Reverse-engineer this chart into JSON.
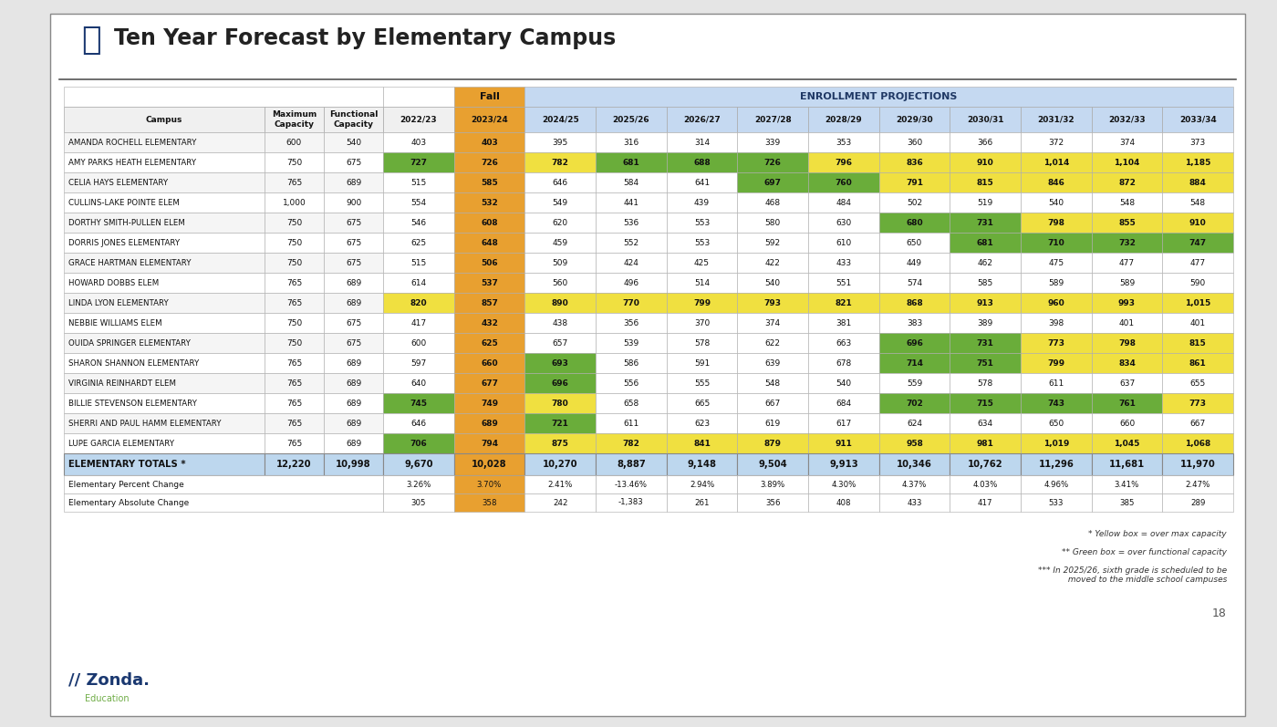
{
  "title": "Ten Year Forecast by Elementary Campus",
  "bg_color": "#e5e5e5",
  "campuses": [
    "AMANDA ROCHELL ELEMENTARY",
    "AMY PARKS HEATH ELEMENTARY",
    "CELIA HAYS ELEMENTARY",
    "CULLINS-LAKE POINTE ELEM",
    "DORTHY SMITH-PULLEN ELEM",
    "DORRIS JONES ELEMENTARY",
    "GRACE HARTMAN ELEMENTARY",
    "HOWARD DOBBS ELEM",
    "LINDA LYON ELEMENTARY",
    "NEBBIE WILLIAMS ELEM",
    "OUIDA SPRINGER ELEMENTARY",
    "SHARON SHANNON ELEMENTARY",
    "VIRGINIA REINHARDT ELEM",
    "BILLIE STEVENSON ELEMENTARY",
    "SHERRI AND PAUL HAMM ELEMENTARY",
    "LUPE GARCIA ELEMENTARY"
  ],
  "max_capacity": [
    600,
    750,
    765,
    1000,
    750,
    750,
    750,
    765,
    765,
    750,
    750,
    765,
    765,
    765,
    765,
    765
  ],
  "func_capacity": [
    540,
    675,
    689,
    900,
    675,
    675,
    675,
    689,
    689,
    675,
    675,
    689,
    689,
    689,
    689,
    689
  ],
  "data": [
    [
      403,
      403,
      395,
      316,
      314,
      339,
      353,
      360,
      366,
      372,
      374,
      373
    ],
    [
      727,
      726,
      782,
      681,
      688,
      726,
      796,
      836,
      910,
      1014,
      1104,
      1185
    ],
    [
      515,
      585,
      646,
      584,
      641,
      697,
      760,
      791,
      815,
      846,
      872,
      884
    ],
    [
      554,
      532,
      549,
      441,
      439,
      468,
      484,
      502,
      519,
      540,
      548,
      548
    ],
    [
      546,
      608,
      620,
      536,
      553,
      580,
      630,
      680,
      731,
      798,
      855,
      910
    ],
    [
      625,
      648,
      459,
      552,
      553,
      592,
      610,
      650,
      681,
      710,
      732,
      747
    ],
    [
      515,
      506,
      509,
      424,
      425,
      422,
      433,
      449,
      462,
      475,
      477,
      477
    ],
    [
      614,
      537,
      560,
      496,
      514,
      540,
      551,
      574,
      585,
      589,
      589,
      590
    ],
    [
      820,
      857,
      890,
      770,
      799,
      793,
      821,
      868,
      913,
      960,
      993,
      1015
    ],
    [
      417,
      432,
      438,
      356,
      370,
      374,
      381,
      383,
      389,
      398,
      401,
      401
    ],
    [
      600,
      625,
      657,
      539,
      578,
      622,
      663,
      696,
      731,
      773,
      798,
      815
    ],
    [
      597,
      660,
      693,
      586,
      591,
      639,
      678,
      714,
      751,
      799,
      834,
      861
    ],
    [
      640,
      677,
      696,
      556,
      555,
      548,
      540,
      559,
      578,
      611,
      637,
      655
    ],
    [
      745,
      749,
      780,
      658,
      665,
      667,
      684,
      702,
      715,
      743,
      761,
      773
    ],
    [
      646,
      689,
      721,
      611,
      623,
      619,
      617,
      624,
      634,
      650,
      660,
      667
    ],
    [
      706,
      794,
      875,
      782,
      841,
      879,
      911,
      958,
      981,
      1019,
      1045,
      1068
    ]
  ],
  "totals": [
    9670,
    10028,
    10270,
    8887,
    9148,
    9504,
    9913,
    10346,
    10762,
    11296,
    11681,
    11970
  ],
  "pct_change": [
    "3.26%",
    "3.70%",
    "2.41%",
    "-13.46%",
    "2.94%",
    "3.89%",
    "4.30%",
    "4.37%",
    "4.03%",
    "4.96%",
    "3.41%",
    "2.47%"
  ],
  "abs_change": [
    "305",
    "358",
    "242",
    "-1,383",
    "261",
    "356",
    "408",
    "433",
    "417",
    "533",
    "385",
    "289"
  ],
  "total_max": "12,220",
  "total_func": "10,998",
  "note1": "* Yellow box = over max capacity",
  "note2": "** Green box = over functional capacity",
  "note3": "*** In 2025/26, sixth grade is scheduled to be\n         moved to the middle school campuses",
  "page_num": "18",
  "color_orange": "#e8a030",
  "color_yellow": "#f0e040",
  "color_green": "#6aad3a",
  "color_blue_hdr": "#c5d9f1",
  "color_totals_bg": "#bdd7ee",
  "color_white": "#ffffff",
  "color_gray_row": "#f5f5f5",
  "color_edge": "#aaaaaa",
  "color_edge_strong": "#888888"
}
